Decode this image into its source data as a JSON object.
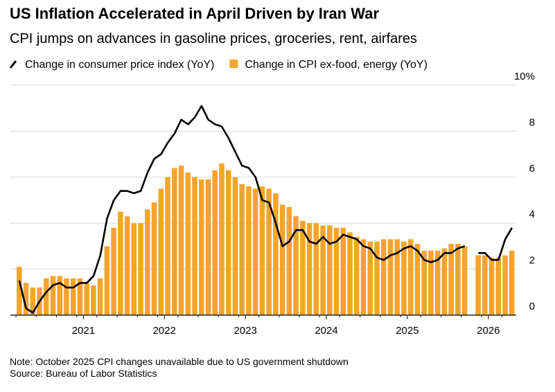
{
  "chart_data": {
    "type": "combo",
    "title": "US Inflation Accelerated in April Driven by Iran War",
    "subtitle": "CPI jumps on advances in gasoline prices, groceries, rent, airfares",
    "note": "Note: October 2025 CPI changes unavailable due to US government shutdown",
    "source": "Source: Bureau of Labor Statistics",
    "categories": [
      null,
      null,
      null,
      null,
      null,
      null,
      null,
      null,
      null,
      null,
      "2021",
      null,
      null,
      null,
      null,
      null,
      null,
      null,
      null,
      null,
      null,
      null,
      "2022",
      null,
      null,
      null,
      null,
      null,
      null,
      null,
      null,
      null,
      null,
      null,
      "2023",
      null,
      null,
      null,
      null,
      null,
      null,
      null,
      null,
      null,
      null,
      null,
      "2024",
      null,
      null,
      null,
      null,
      null,
      null,
      null,
      null,
      null,
      null,
      null,
      "2025",
      null,
      null,
      null,
      null,
      null,
      null,
      null,
      null,
      null,
      null,
      null,
      "2026",
      null,
      null,
      null
    ],
    "series": [
      {
        "name": "Change in consumer price index (YoY)",
        "type": "line",
        "color": "#000000",
        "values": [
          1.5,
          0.3,
          0.1,
          0.6,
          1.0,
          1.3,
          1.4,
          1.2,
          1.2,
          1.4,
          1.4,
          1.7,
          2.6,
          4.2,
          5.0,
          5.4,
          5.4,
          5.3,
          5.4,
          6.2,
          6.8,
          7.0,
          7.5,
          7.9,
          8.5,
          8.3,
          8.6,
          9.1,
          8.5,
          8.3,
          8.2,
          7.7,
          7.1,
          6.5,
          6.4,
          6.0,
          5.0,
          4.9,
          4.0,
          3.0,
          3.2,
          3.7,
          3.7,
          3.2,
          3.1,
          3.4,
          3.1,
          3.2,
          3.5,
          3.4,
          3.3,
          3.0,
          2.9,
          2.5,
          2.4,
          2.6,
          2.7,
          2.9,
          3.0,
          2.8,
          2.4,
          2.3,
          2.4,
          2.7,
          2.7,
          2.9,
          3.0,
          null,
          2.7,
          2.7,
          2.4,
          2.4,
          3.3,
          3.8
        ]
      },
      {
        "name": "Change in CPI ex-food, energy (YoY)",
        "type": "bar",
        "color": "#f6a42c",
        "values": [
          2.1,
          1.4,
          1.2,
          1.2,
          1.6,
          1.7,
          1.7,
          1.6,
          1.6,
          1.6,
          1.4,
          1.3,
          1.6,
          3.0,
          3.8,
          4.5,
          4.3,
          4.0,
          4.0,
          4.6,
          4.9,
          5.5,
          6.0,
          6.4,
          6.5,
          6.2,
          6.0,
          5.9,
          5.9,
          6.3,
          6.6,
          6.3,
          6.0,
          5.7,
          5.6,
          5.5,
          5.6,
          5.5,
          5.3,
          4.8,
          4.7,
          4.3,
          4.1,
          4.0,
          4.0,
          3.9,
          3.9,
          3.8,
          3.8,
          3.6,
          3.4,
          3.3,
          3.2,
          3.2,
          3.3,
          3.3,
          3.3,
          3.2,
          3.3,
          3.1,
          2.8,
          2.8,
          2.8,
          2.9,
          3.1,
          3.1,
          3.0,
          null,
          2.6,
          2.6,
          2.5,
          2.5,
          2.6,
          2.8
        ]
      }
    ],
    "ylim": [
      0,
      10
    ],
    "yticks": [
      0,
      2,
      4,
      6,
      8,
      {
        "value": 10,
        "label": "10%"
      }
    ],
    "grid": true
  }
}
